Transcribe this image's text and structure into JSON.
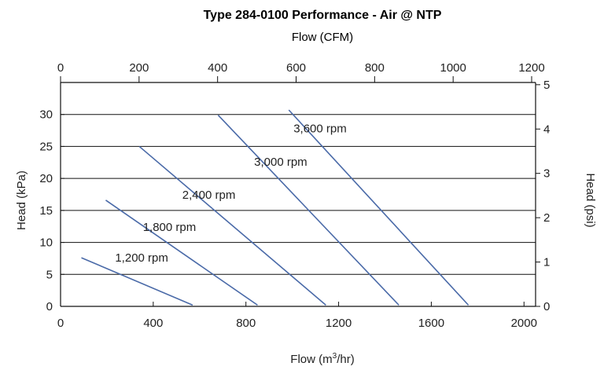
{
  "chart_data": {
    "type": "line",
    "title": "Type 284-0100 Performance - Air @ NTP",
    "top_axis_label": "Flow (CFM)",
    "xlabel_base": "Flow (m",
    "xlabel_sup": "3",
    "xlabel_tail": "/hr)",
    "ylabel": "Head (kPa)",
    "ylabel_right": "Head (psi)",
    "xlim": [
      0,
      2050
    ],
    "ylim": [
      0,
      35
    ],
    "x_ticks": [
      "0",
      "400",
      "800",
      "1200",
      "1600",
      "2000"
    ],
    "x_tick_values": [
      0,
      400,
      800,
      1200,
      1600,
      2000
    ],
    "y_ticks": [
      "0",
      "5",
      "10",
      "15",
      "20",
      "25",
      "30"
    ],
    "y_tick_values": [
      0,
      5,
      10,
      15,
      20,
      25,
      30
    ],
    "top_ticks": [
      "0",
      "200",
      "400",
      "600",
      "800",
      "1000",
      "1200"
    ],
    "top_tick_values": [
      0,
      200,
      400,
      600,
      800,
      1000,
      1200
    ],
    "right_ticks": [
      "0",
      "1",
      "2",
      "3",
      "4",
      "5"
    ],
    "right_tick_values": [
      0,
      1,
      2,
      3,
      4,
      5
    ],
    "grid": "horizontal",
    "series": [
      {
        "name": "1,200 rpm",
        "x": [
          90,
          570
        ],
        "y": [
          7.6,
          0.2
        ],
        "label_at": [
          350,
          7.0
        ]
      },
      {
        "name": "1,800 rpm",
        "x": [
          195,
          850
        ],
        "y": [
          16.6,
          0.2
        ],
        "label_at": [
          470,
          11.8
        ]
      },
      {
        "name": "2,400 rpm",
        "x": [
          340,
          1145
        ],
        "y": [
          25.0,
          0.2
        ],
        "label_at": [
          640,
          16.8
        ]
      },
      {
        "name": "3,000 rpm",
        "x": [
          680,
          1460
        ],
        "y": [
          29.9,
          0.2
        ],
        "label_at": [
          950,
          22.0
        ]
      },
      {
        "name": "3,600 rpm",
        "x": [
          985,
          1760
        ],
        "y": [
          30.7,
          0.2
        ],
        "label_at": [
          1120,
          27.2
        ]
      }
    ],
    "line_color": "#4a6aa8"
  }
}
